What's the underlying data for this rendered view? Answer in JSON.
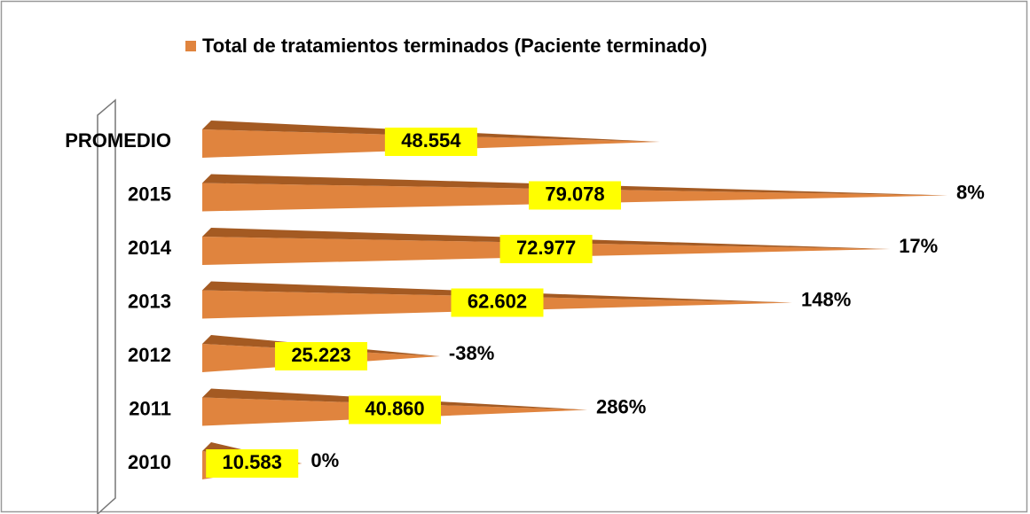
{
  "chart_data": {
    "type": "cone-bar",
    "legend": "Total de tratamientos terminados (Paciente terminado)",
    "color": "#e0843e",
    "categories": [
      "PROMEDIO",
      "2015",
      "2014",
      "2013",
      "2012",
      "2011",
      "2010"
    ],
    "values": [
      48554,
      79078,
      72977,
      62602,
      25223,
      40860,
      10583
    ],
    "value_labels": [
      "48.554",
      "79.078",
      "72.977",
      "62.602",
      "25.223",
      "40.860",
      "10.583"
    ],
    "change_labels": [
      null,
      "8%",
      "17%",
      "148%",
      "-38%",
      "286%",
      "0%"
    ]
  }
}
